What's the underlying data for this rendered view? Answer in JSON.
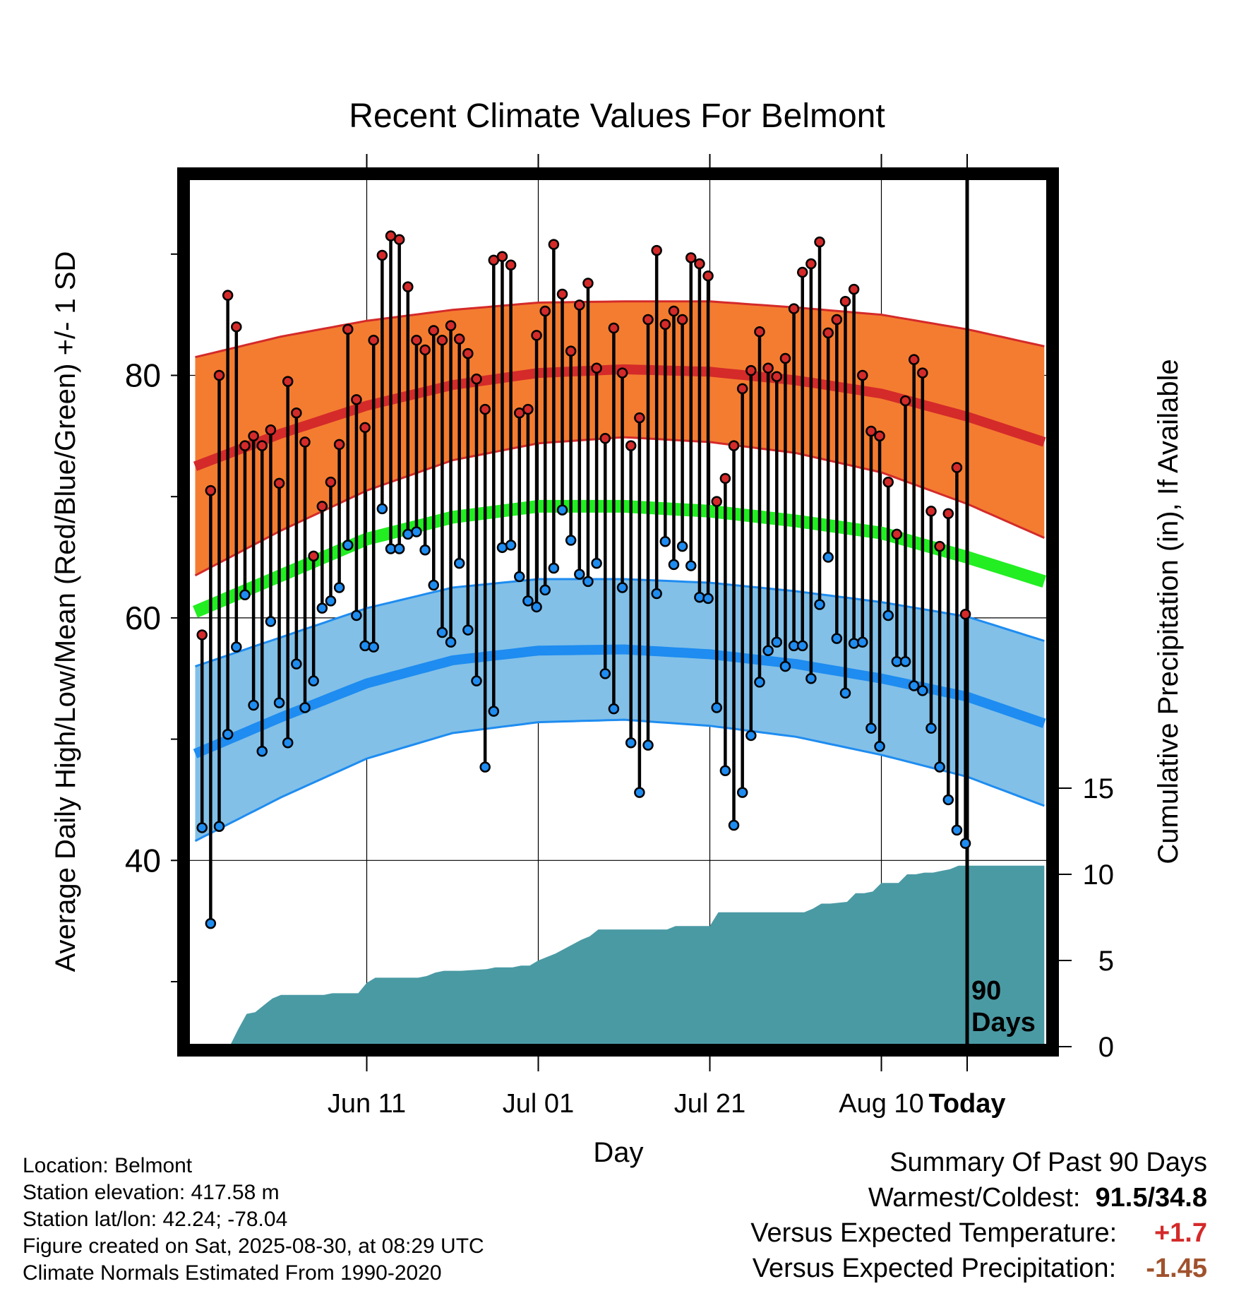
{
  "chart_data": {
    "type": "line",
    "title": "Recent Climate Values For Belmont",
    "xlabel": "Day",
    "ylabel": "Average Daily High/Low/Mean (Red/Blue/Green) +/- 1 SD",
    "y2label": "Cumulative Precipitation (in), If Available",
    "x_tick_labels": [
      "Jun 11",
      "Jul 01",
      "Jul 21",
      "Aug 10",
      "Today"
    ],
    "y_tick_labels": [
      "40",
      "60",
      "80"
    ],
    "y2_tick_labels": [
      "0",
      "5",
      "10",
      "15"
    ],
    "ylim": [
      25,
      97
    ],
    "y2lim": [
      0,
      20
    ],
    "day_range": [
      -90,
      9
    ],
    "today_annotation": [
      "90",
      "Days"
    ],
    "grid": true,
    "colors": {
      "high": "#d42a2a",
      "high_band": "#f47c30",
      "low": "#1e8cf0",
      "low_band": "#82c0e8",
      "mean": "#22ee22",
      "precip": "#4a9aa4",
      "positive": "#d42a2a",
      "negative": "#a0522d"
    },
    "normals": {
      "day": [
        -90,
        -80,
        -70,
        -60,
        -50,
        -40,
        -30,
        -20,
        -10,
        0,
        9
      ],
      "high_mean": [
        72.5,
        75.2,
        77.5,
        79.2,
        80.2,
        80.5,
        80.3,
        79.6,
        78.5,
        76.6,
        74.5
      ],
      "high_sd": [
        9.0,
        8.0,
        7.0,
        6.2,
        5.8,
        5.6,
        5.8,
        6.0,
        6.5,
        7.2,
        7.9
      ],
      "mean_mean": [
        60.5,
        63.5,
        66.5,
        68.3,
        69.2,
        69.2,
        68.8,
        68.0,
        67.0,
        65.0,
        63.0
      ],
      "low_mean": [
        48.8,
        51.8,
        54.6,
        56.5,
        57.3,
        57.4,
        57.0,
        56.2,
        55.0,
        53.5,
        51.3
      ],
      "low_sd": [
        7.2,
        6.6,
        6.2,
        6.0,
        5.9,
        5.8,
        5.9,
        6.0,
        6.3,
        6.6,
        6.8
      ]
    },
    "series": [
      {
        "name": "High",
        "values": [
          58.6,
          70.5,
          80.0,
          86.6,
          84.0,
          74.2,
          75.0,
          74.2,
          75.5,
          71.1,
          79.5,
          76.9,
          74.5,
          65.1,
          69.2,
          71.2,
          74.3,
          83.8,
          78.0,
          75.7,
          82.9,
          89.9,
          91.5,
          91.2,
          87.3,
          82.9,
          82.1,
          83.7,
          82.9,
          84.1,
          83.0,
          81.8,
          79.7,
          77.2,
          89.5,
          89.8,
          89.1,
          76.9,
          77.2,
          83.3,
          85.3,
          90.8,
          86.7,
          82.0,
          85.8,
          87.6,
          80.6,
          74.8,
          83.9,
          80.2,
          74.2,
          76.5,
          84.6,
          90.3,
          84.2,
          85.3,
          84.6,
          89.7,
          89.2,
          88.2,
          69.6,
          71.5,
          74.2,
          78.9,
          80.4,
          83.6,
          80.6,
          79.9,
          81.4,
          85.5,
          88.5,
          89.2,
          91.0,
          83.5,
          84.6,
          86.1,
          87.1,
          80.0,
          75.4,
          75.0,
          71.2,
          66.9,
          77.9,
          81.3,
          80.2,
          68.8,
          65.9,
          68.6,
          72.4,
          60.3
        ]
      },
      {
        "name": "Low",
        "values": [
          42.7,
          34.8,
          42.8,
          50.4,
          57.6,
          61.9,
          52.8,
          49.0,
          59.7,
          53.0,
          49.7,
          56.2,
          52.6,
          54.8,
          60.8,
          61.4,
          62.5,
          66.0,
          60.2,
          57.7,
          57.6,
          69.0,
          65.7,
          65.7,
          66.9,
          67.1,
          65.6,
          62.7,
          58.8,
          58.0,
          64.5,
          59.0,
          54.8,
          47.7,
          52.3,
          65.8,
          66.0,
          63.4,
          61.4,
          60.9,
          62.3,
          64.1,
          68.9,
          66.4,
          63.6,
          63.0,
          64.5,
          55.4,
          52.5,
          62.5,
          49.7,
          45.6,
          49.5,
          62.0,
          66.3,
          64.4,
          65.9,
          64.3,
          61.7,
          61.6,
          52.6,
          47.4,
          42.9,
          45.6,
          50.3,
          54.7,
          57.3,
          58.0,
          56.0,
          57.7,
          57.7,
          55.0,
          61.1,
          65.0,
          58.3,
          53.8,
          57.9,
          58.0,
          50.9,
          49.4,
          60.2,
          56.4,
          56.4,
          54.4,
          54.0,
          50.9,
          47.7,
          45.0,
          42.5,
          41.4
        ]
      }
    ],
    "precipitation": {
      "name": "Cumulative Precipitation",
      "day": [
        -90,
        -86,
        -85,
        -84,
        -83,
        -82,
        -81,
        -80,
        -79,
        -78,
        -75,
        -74,
        -72,
        -71,
        -70,
        -69,
        -66,
        -65,
        -64,
        -63,
        -62,
        -61,
        -60,
        -59,
        -56,
        -55,
        -54,
        -53,
        -52,
        -51,
        -50,
        -49,
        -48,
        -45,
        -44,
        -43,
        -42,
        -41,
        -40,
        -39,
        -38,
        -35,
        -34,
        -33,
        -32,
        -31,
        -30,
        -29,
        -28,
        -26,
        -25,
        -24,
        -23,
        -22,
        -21,
        -20,
        -19,
        -18,
        -17,
        -16,
        -14,
        -13,
        -12,
        -11,
        -10,
        -9,
        -8,
        -7,
        -6,
        -5,
        -4,
        -3,
        -2,
        -1,
        0,
        9
      ],
      "values": [
        0.0,
        0.0,
        1.0,
        1.9,
        2.0,
        2.4,
        2.8,
        3.0,
        3.0,
        3.0,
        3.0,
        3.1,
        3.1,
        3.1,
        3.7,
        4.0,
        4.0,
        4.0,
        4.0,
        4.1,
        4.3,
        4.4,
        4.4,
        4.4,
        4.5,
        4.6,
        4.6,
        4.6,
        4.7,
        4.7,
        5.0,
        5.2,
        5.4,
        6.2,
        6.4,
        6.8,
        6.8,
        6.8,
        6.8,
        6.8,
        6.8,
        6.8,
        7.0,
        7.0,
        7.0,
        7.0,
        7.0,
        7.8,
        7.8,
        7.8,
        7.8,
        7.8,
        7.8,
        7.8,
        7.8,
        7.8,
        7.8,
        8.0,
        8.3,
        8.3,
        8.4,
        8.9,
        8.9,
        9.0,
        9.5,
        9.5,
        9.5,
        10.0,
        10.0,
        10.1,
        10.1,
        10.2,
        10.3,
        10.5,
        10.5,
        10.5
      ]
    }
  },
  "info": {
    "location": "Location: Belmont",
    "elevation": "Station elevation: 417.58 m",
    "latlon": "Station lat/lon: 42.24; -78.04",
    "created": "Figure created on Sat, 2025-08-30, at 08:29 UTC",
    "normals": "Climate Normals Estimated From 1990-2020"
  },
  "summary": {
    "title": "Summary Of Past 90 Days",
    "warmest_label": "Warmest/Coldest:",
    "warmest_value": "91.5/34.8",
    "temp_label": "Versus Expected Temperature:",
    "temp_value": "+1.7",
    "precip_label": "Versus Expected Precipitation:",
    "precip_value": "-1.45"
  }
}
